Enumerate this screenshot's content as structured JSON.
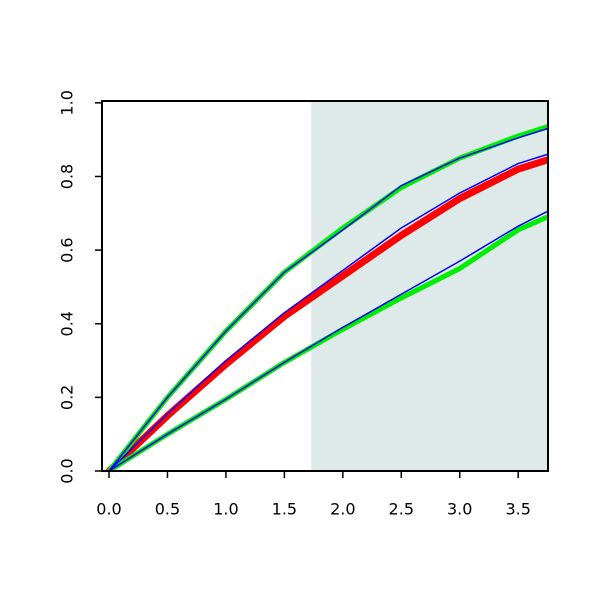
{
  "chart_data": {
    "type": "line",
    "x": [
      0,
      0.5,
      1,
      1.5,
      2,
      2.5,
      3,
      3.5,
      3.75
    ],
    "series": [
      {
        "color": "#ff0000",
        "width": 7,
        "values": [
          0,
          0.15,
          0.29,
          0.42,
          0.53,
          0.64,
          0.74,
          0.82,
          0.845
        ]
      },
      {
        "color": "#00ee00",
        "width": 5,
        "values": [
          0,
          0.2,
          0.38,
          0.54,
          0.66,
          0.77,
          0.85,
          0.91,
          0.935
        ]
      },
      {
        "color": "#00ee00",
        "width": 5,
        "values": [
          0,
          0.1,
          0.195,
          0.295,
          0.385,
          0.47,
          0.55,
          0.655,
          0.69
        ]
      },
      {
        "color": "#0000ff",
        "width": 1.5,
        "values": [
          0,
          0.2,
          0.38,
          0.54,
          0.655,
          0.775,
          0.85,
          0.905,
          0.93
        ]
      },
      {
        "color": "#0000ff",
        "width": 1.5,
        "values": [
          0,
          0.155,
          0.3,
          0.43,
          0.545,
          0.66,
          0.755,
          0.835,
          0.86
        ]
      },
      {
        "color": "#0000ff",
        "width": 1.5,
        "values": [
          0,
          0.1,
          0.195,
          0.295,
          0.39,
          0.48,
          0.57,
          0.665,
          0.705
        ]
      }
    ],
    "shaded_region": {
      "xmin": 1.73,
      "color": "#deeaea"
    },
    "xlim": [
      -0.06,
      3.755
    ],
    "ylim": [
      0,
      1.005
    ],
    "xticks": [
      {
        "value": 0,
        "label": "0.0"
      },
      {
        "value": 0.5,
        "label": "0.5"
      },
      {
        "value": 1,
        "label": "1.0"
      },
      {
        "value": 1.5,
        "label": "1.5"
      },
      {
        "value": 2,
        "label": "2.0"
      },
      {
        "value": 2.5,
        "label": "2.5"
      },
      {
        "value": 3,
        "label": "3.0"
      },
      {
        "value": 3.5,
        "label": "3.5"
      }
    ],
    "yticks": [
      {
        "value": 0,
        "label": "0.0"
      },
      {
        "value": 0.2,
        "label": "0.2"
      },
      {
        "value": 0.4,
        "label": "0.4"
      },
      {
        "value": 0.6,
        "label": "0.6"
      },
      {
        "value": 0.8,
        "label": "0.8"
      },
      {
        "value": 1,
        "label": "1.0"
      }
    ]
  }
}
